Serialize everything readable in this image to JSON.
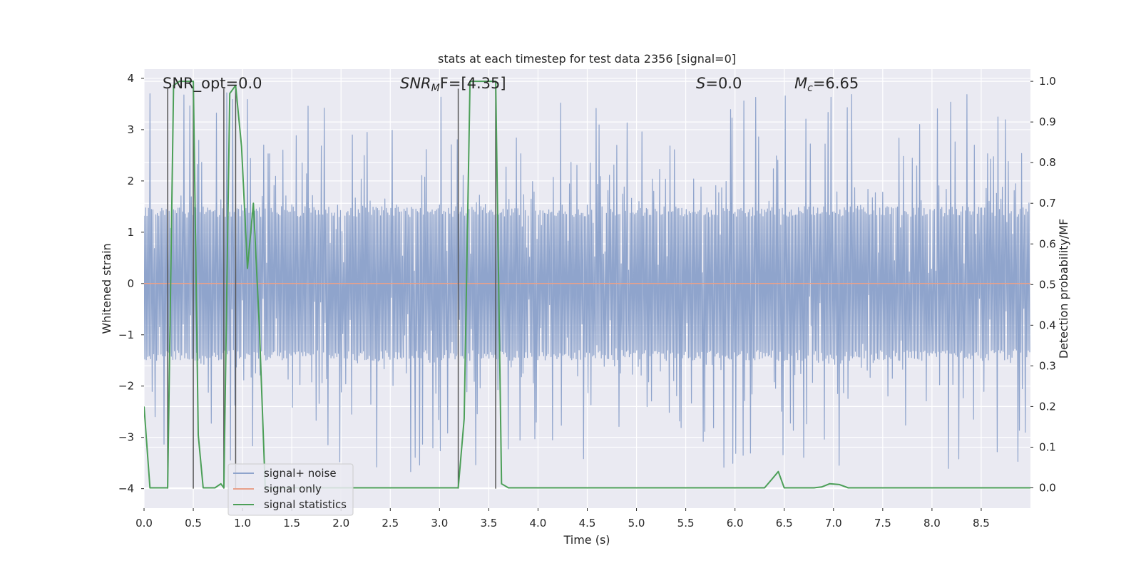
{
  "chart_data": {
    "type": "line",
    "title": "stats at each timestep for test data 2356 [signal=0]",
    "xlabel": "Time (s)",
    "ylabel_left": "Whitened strain",
    "ylabel_right": "Detection probability/MF",
    "xlim": [
      0,
      9.0
    ],
    "ylim_left": [
      -4.38,
      4.18
    ],
    "ylim_right": [
      -0.05,
      1.03
    ],
    "x_ticks": [
      0.0,
      0.5,
      1.0,
      1.5,
      2.0,
      2.5,
      3.0,
      3.5,
      4.0,
      4.5,
      5.0,
      5.5,
      6.0,
      6.5,
      7.0,
      7.5,
      8.0,
      8.5
    ],
    "x_tick_labels": [
      "0.0",
      "0.5",
      "1.0",
      "1.5",
      "2.0",
      "2.5",
      "3.0",
      "3.5",
      "4.0",
      "4.5",
      "5.0",
      "5.5",
      "6.0",
      "6.5",
      "7.0",
      "7.5",
      "8.0",
      "8.5"
    ],
    "y_left_ticks": [
      4,
      3,
      2,
      1,
      0,
      -1,
      -2,
      -3,
      -4
    ],
    "y_left_tick_labels": [
      "4",
      "3",
      "2",
      "1",
      "0",
      "−1",
      "−2",
      "−3",
      "−4"
    ],
    "y_right_ticks": [
      1.0,
      0.9,
      0.8,
      0.7,
      0.6,
      0.5,
      0.4,
      0.3,
      0.2,
      0.1,
      0.0
    ],
    "y_right_tick_labels": [
      "1.0",
      "0.9",
      "0.8",
      "0.7",
      "0.6",
      "0.5",
      "0.4",
      "0.3",
      "0.2",
      "0.1",
      "0.0"
    ],
    "annotations": {
      "snr_opt": "SNR_opt=0.0",
      "snr_mf_sym": "SNR",
      "snr_mf_sub": "M",
      "snr_mf_rest": "F=[4.35]",
      "s_sym": "S",
      "s_rest": "=0.0",
      "mc_sym": "M",
      "mc_sub": "c",
      "mc_rest": "=6.65"
    },
    "legend": {
      "location": "lower-left",
      "entries": [
        {
          "label": "signal+ noise",
          "color": "#8fa4cc"
        },
        {
          "label": "signal only",
          "color": "#e8a08a"
        },
        {
          "label": "signal statistics",
          "color": "#4c9f58"
        }
      ]
    },
    "noise_series": {
      "name": "signal+ noise",
      "dt": 0.0075,
      "seed": 2356,
      "envelope": 1.5,
      "spike_prob": 0.28,
      "spike_scale": 0.85,
      "color": "#8fa4cc"
    },
    "signal_only": {
      "name": "signal only",
      "x": [
        0.0,
        9.0
      ],
      "y": [
        0.0,
        0.0
      ],
      "color": "#e8a08a"
    },
    "vertical_markers": {
      "x": [
        0.24,
        0.5,
        0.81,
        0.93,
        3.19,
        3.57
      ],
      "y_bottom": -4.0,
      "y_top": 3.8,
      "color": "#555555"
    },
    "statistics": {
      "name": "signal statistics",
      "axis": "right",
      "color": "#4c9f58",
      "x": [
        0.0,
        0.06,
        0.12,
        0.18,
        0.24,
        0.3,
        0.36,
        0.42,
        0.48,
        0.5,
        0.55,
        0.6,
        0.66,
        0.72,
        0.78,
        0.81,
        0.87,
        0.93,
        0.99,
        1.05,
        1.11,
        1.17,
        1.23,
        1.3,
        1.5,
        2.0,
        2.5,
        3.0,
        3.1,
        3.19,
        3.25,
        3.31,
        3.4,
        3.5,
        3.57,
        3.63,
        3.7,
        3.8,
        4.0,
        5.0,
        6.0,
        6.3,
        6.37,
        6.44,
        6.5,
        6.8,
        6.88,
        6.96,
        7.06,
        7.15,
        7.5,
        8.0,
        8.5,
        9.0
      ],
      "y": [
        0.2,
        0.0,
        0.0,
        0.0,
        0.0,
        0.99,
        1.0,
        1.0,
        1.0,
        1.0,
        0.13,
        0.0,
        0.0,
        0.0,
        0.01,
        0.0,
        0.97,
        0.99,
        0.84,
        0.54,
        0.7,
        0.4,
        0.0,
        0.0,
        0.0,
        0.0,
        0.0,
        0.0,
        0.0,
        0.0,
        0.17,
        1.0,
        1.0,
        1.0,
        1.0,
        0.01,
        0.0,
        0.0,
        0.0,
        0.0,
        0.0,
        0.0,
        0.02,
        0.04,
        0.0,
        0.0,
        0.002,
        0.01,
        0.008,
        0.0,
        0.0,
        0.0,
        0.0,
        0.0
      ]
    }
  }
}
